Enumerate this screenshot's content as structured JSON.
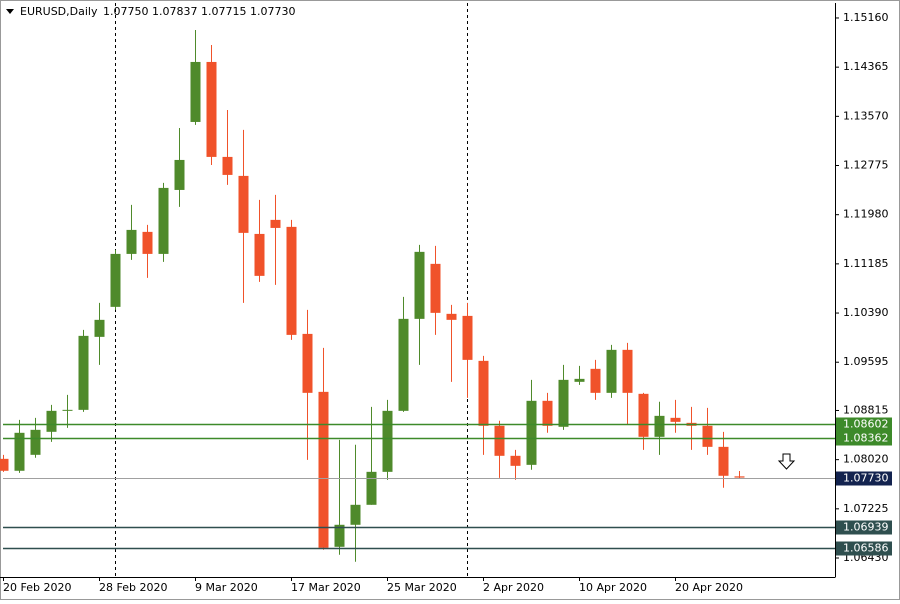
{
  "header": {
    "symbol": "EURUSD,Daily",
    "ohlc": [
      "1.07750",
      "1.07837",
      "1.07715",
      "1.07730"
    ]
  },
  "chart_data": {
    "type": "candlestick",
    "categories": [
      "20 Feb 2020",
      null,
      null,
      null,
      null,
      null,
      "28 Feb 2020",
      null,
      null,
      null,
      null,
      null,
      "9 Mar 2020",
      null,
      null,
      null,
      null,
      null,
      "17 Mar 2020",
      null,
      null,
      null,
      null,
      null,
      "25 Mar 2020",
      null,
      null,
      null,
      null,
      null,
      "2 Apr 2020",
      null,
      null,
      null,
      null,
      null,
      "10 Apr 2020",
      null,
      null,
      null,
      null,
      null,
      "20 Apr 2020",
      null,
      null,
      null,
      null
    ],
    "open": [
      1.08033,
      1.0784,
      1.08098,
      1.0847,
      1.08809,
      1.08825,
      1.10005,
      1.1049,
      1.11346,
      1.11702,
      1.11346,
      1.1238,
      1.13479,
      1.14449,
      1.12914,
      1.12607,
      1.11669,
      1.11896,
      1.11783,
      1.10053,
      1.09116,
      1.06611,
      1.06967,
      1.0729,
      1.07823,
      1.08809,
      1.10296,
      1.11185,
      1.10377,
      1.10344,
      1.09617,
      1.08567,
      1.08082,
      1.07936,
      1.08971,
      1.08551,
      1.09278,
      1.09488,
      1.091,
      1.09795,
      1.09084,
      1.08389,
      1.08696,
      1.08615,
      1.08567,
      1.08227,
      1.0775
    ],
    "high": [
      1.08098,
      1.08664,
      1.08696,
      1.08906,
      1.09068,
      1.10118,
      1.10554,
      1.11411,
      1.12138,
      1.11815,
      1.12494,
      1.13382,
      1.14966,
      1.14724,
      1.13673,
      1.1335,
      1.12219,
      1.123,
      1.11896,
      1.10441,
      1.09827,
      1.0834,
      1.0826,
      1.08874,
      1.08987,
      1.10651,
      1.11492,
      1.11476,
      1.10522,
      1.10554,
      1.09698,
      1.08648,
      1.08179,
      1.0931,
      1.091,
      1.09552,
      1.09536,
      1.09633,
      1.09876,
      1.09908,
      1.091,
      1.08955,
      1.08987,
      1.08874,
      1.08858,
      1.0847,
      1.07837
    ],
    "low": [
      1.07823,
      1.07807,
      1.0805,
      1.08308,
      1.08534,
      1.08793,
      1.09552,
      1.10441,
      1.11249,
      1.10958,
      1.11217,
      1.12106,
      1.13431,
      1.12784,
      1.12461,
      1.10554,
      1.10894,
      1.10845,
      1.09956,
      1.08017,
      1.06563,
      1.06482,
      1.06369,
      1.0729,
      1.07694,
      1.08793,
      1.09552,
      1.10037,
      1.09278,
      1.09019,
      1.08098,
      1.07726,
      1.07694,
      1.07856,
      1.08454,
      1.08502,
      1.09229,
      1.08987,
      1.09019,
      1.08583,
      1.08179,
      1.08098,
      1.08454,
      1.08179,
      1.08098,
      1.07565,
      1.07715
    ],
    "close": [
      1.0784,
      1.08454,
      1.08502,
      1.08809,
      1.08825,
      1.10021,
      1.1028,
      1.11346,
      1.11734,
      1.11346,
      1.12413,
      1.12865,
      1.14449,
      1.12914,
      1.12623,
      1.11686,
      1.10991,
      1.11766,
      1.10037,
      1.091,
      1.06595,
      1.06967,
      1.0729,
      1.07823,
      1.08809,
      1.10296,
      1.11379,
      1.10393,
      1.1028,
      1.09633,
      1.08567,
      1.08082,
      1.0792,
      1.08971,
      1.08567,
      1.0931,
      1.09326,
      1.091,
      1.09795,
      1.091,
      1.08389,
      1.08728,
      1.08631,
      1.08567,
      1.08227,
      1.07759,
      1.0773
    ],
    "up_color": "#4f8a2b",
    "down_color": "#f0522a",
    "ylim": [
      1.06123,
      1.15402
    ],
    "yticks": [
      {
        "value": 1.1516,
        "label": "1.15160"
      },
      1.14365,
      {
        "value": 1.1357,
        "label": "1.13570"
      },
      1.12775,
      {
        "value": 1.1198,
        "label": "1.11980"
      },
      1.11185,
      {
        "value": 1.1039,
        "label": "1.10390"
      },
      1.09595,
      1.08815,
      {
        "value": 1.0802,
        "label": "1.08020"
      },
      1.07225,
      {
        "value": 1.0643,
        "label": "1.06430"
      }
    ],
    "levels": [
      {
        "value": 1.08602,
        "color": "#3d8a2a"
      },
      {
        "value": 1.08362,
        "color": "#3d8a2a"
      },
      {
        "value": 1.0773,
        "label": "1.07730",
        "color": "#13234f"
      },
      {
        "value": 1.06939,
        "color": "#2f4f4f"
      },
      {
        "value": 1.06586,
        "color": "#2f4f4f"
      }
    ]
  }
}
